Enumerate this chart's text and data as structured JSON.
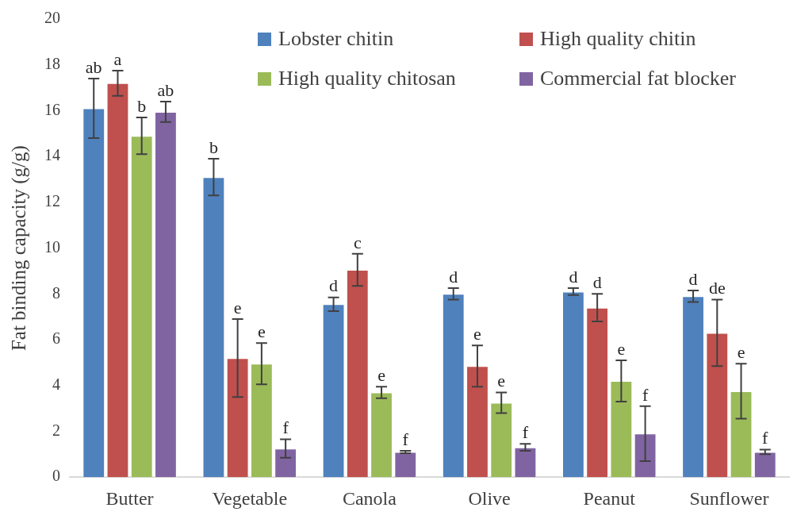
{
  "chart_data": {
    "type": "bar",
    "ylabel": "Fat binding capacity (g/g)",
    "categories": [
      "Butter",
      "Vegetable",
      "Canola",
      "Olive",
      "Peanut",
      "Sunflower"
    ],
    "series": [
      {
        "name": "Lobster chitin",
        "color": "#4f81bd",
        "values": [
          16.1,
          13.1,
          7.55,
          8.0,
          8.1,
          7.9
        ],
        "errors": [
          1.3,
          0.8,
          0.3,
          0.25,
          0.15,
          0.25
        ],
        "value_labels": [
          "ab",
          "b",
          "d",
          "d",
          "d",
          "d"
        ]
      },
      {
        "name": "High quality chitin",
        "color": "#c0504d",
        "values": [
          17.2,
          5.2,
          9.05,
          4.85,
          7.4,
          6.3
        ],
        "errors": [
          0.55,
          1.7,
          0.7,
          0.9,
          0.6,
          1.45
        ],
        "value_labels": [
          "a",
          "e",
          "c",
          "e",
          "d",
          "de"
        ]
      },
      {
        "name": "High quality chitosan",
        "color": "#9bbb59",
        "values": [
          14.9,
          4.95,
          3.7,
          3.25,
          4.2,
          3.75
        ],
        "errors": [
          0.8,
          0.9,
          0.25,
          0.45,
          0.9,
          1.2
        ],
        "value_labels": [
          "b",
          "e",
          "e",
          "e",
          "e",
          "e"
        ]
      },
      {
        "name": "Commercial fat blocker",
        "color": "#8064a2",
        "values": [
          15.95,
          1.25,
          1.1,
          1.3,
          1.9,
          1.1
        ],
        "errors": [
          0.45,
          0.4,
          0.05,
          0.15,
          1.2,
          0.1
        ],
        "value_labels": [
          "ab",
          "f",
          "f",
          "f",
          "f",
          "f"
        ]
      }
    ],
    "ylim": [
      0,
      20
    ],
    "yticks": [
      0,
      2,
      4,
      6,
      8,
      10,
      12,
      14,
      16,
      18,
      20
    ],
    "grid": false,
    "legend": "top right"
  }
}
